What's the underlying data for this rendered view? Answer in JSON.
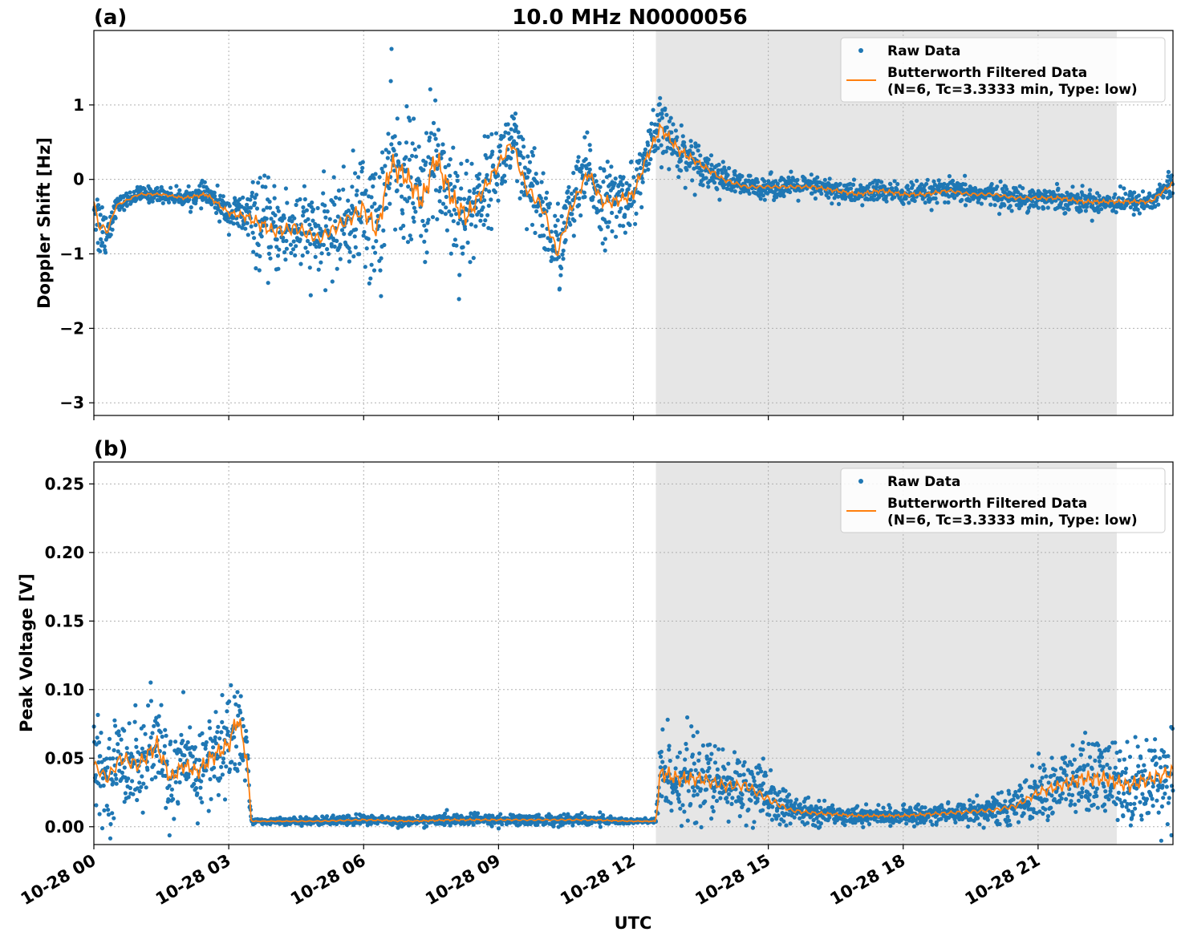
{
  "figure": {
    "title": "10.0 MHz N0000056",
    "xlabel": "UTC",
    "x_ticks": [
      "10-28 00",
      "10-28 03",
      "10-28 06",
      "10-28 09",
      "10-28 12",
      "10-28 15",
      "10-28 18",
      "10-28 21"
    ],
    "shaded_span": [
      "10-28 12:30",
      "10-28 22:45"
    ],
    "colors": {
      "raw": "#1f77b4",
      "filtered": "#ff7f0e",
      "shade": "#e6e6e6",
      "grid": "#b0b0b0"
    }
  },
  "legend": {
    "raw_label": "Raw Data",
    "filtered_label_line1": "Butterworth Filtered Data",
    "filtered_label_line2": "(N=6, Tc=3.3333 min, Type: low)"
  },
  "chart_data": [
    {
      "type": "scatter",
      "panel_label": "(a)",
      "ylabel": "Doppler Shift [Hz]",
      "ylim": [
        -3.17,
        2.0
      ],
      "y_ticks": [
        1,
        0,
        -1,
        -2,
        -3
      ],
      "y_tick_labels": [
        "1",
        "0",
        "−1",
        "−2",
        "−3"
      ],
      "x_hours_range": [
        0,
        24
      ],
      "legend_position": "top-right",
      "series": [
        {
          "name": "Raw Data",
          "style": "points",
          "x_hours": [
            0,
            0.1,
            0.3,
            0.5,
            1.0,
            1.5,
            2.0,
            2.5,
            3.0,
            3.4,
            3.7,
            4.0,
            4.5,
            5.0,
            5.5,
            6.0,
            6.3,
            6.6,
            7.0,
            7.3,
            7.6,
            8.0,
            8.3,
            8.6,
            9.0,
            9.3,
            9.6,
            10.0,
            10.3,
            10.6,
            11.0,
            11.3,
            11.6,
            12.0,
            12.3,
            12.6,
            13.0,
            13.5,
            14.0,
            14.5,
            15.0,
            15.5,
            16.0,
            16.5,
            17.0,
            17.5,
            18.0,
            18.5,
            19.0,
            19.5,
            20.0,
            20.5,
            21.0,
            21.5,
            22.0,
            22.5,
            23.0,
            23.5,
            24.0
          ],
          "y_center": [
            -0.3,
            -0.6,
            -0.7,
            -0.35,
            -0.2,
            -0.2,
            -0.25,
            -0.2,
            -0.45,
            -0.5,
            -0.6,
            -0.7,
            -0.65,
            -0.8,
            -0.6,
            -0.4,
            -0.7,
            0.2,
            0.0,
            -0.3,
            0.3,
            -0.3,
            -0.5,
            -0.2,
            0.2,
            0.5,
            -0.1,
            -0.4,
            -1.0,
            -0.4,
            0.1,
            -0.3,
            -0.3,
            -0.2,
            0.3,
            0.7,
            0.4,
            0.2,
            0.0,
            -0.1,
            -0.1,
            -0.1,
            -0.1,
            -0.15,
            -0.2,
            -0.15,
            -0.2,
            -0.2,
            -0.15,
            -0.2,
            -0.2,
            -0.25,
            -0.25,
            -0.25,
            -0.3,
            -0.3,
            -0.3,
            -0.3,
            -0.05
          ],
          "y_spread": [
            0.15,
            0.5,
            0.3,
            0.1,
            0.1,
            0.1,
            0.1,
            0.15,
            0.2,
            0.35,
            0.6,
            0.55,
            0.6,
            0.55,
            0.6,
            0.8,
            0.9,
            1.0,
            0.8,
            0.9,
            0.9,
            0.9,
            0.8,
            0.6,
            0.5,
            0.6,
            0.6,
            0.6,
            0.6,
            0.5,
            0.5,
            0.5,
            0.5,
            0.4,
            0.4,
            0.4,
            0.35,
            0.25,
            0.2,
            0.15,
            0.15,
            0.15,
            0.15,
            0.15,
            0.15,
            0.15,
            0.15,
            0.15,
            0.15,
            0.15,
            0.15,
            0.15,
            0.15,
            0.15,
            0.15,
            0.15,
            0.15,
            0.15,
            0.2
          ]
        },
        {
          "name": "Butterworth Filtered Data (N=6, Tc=3.3333 min, Type: low)",
          "style": "line",
          "x_hours": [
            0,
            0.1,
            0.3,
            0.5,
            1.0,
            1.5,
            2.0,
            2.5,
            3.0,
            3.4,
            3.7,
            4.0,
            4.5,
            5.0,
            5.5,
            6.0,
            6.3,
            6.6,
            7.0,
            7.3,
            7.6,
            8.0,
            8.3,
            8.6,
            9.0,
            9.3,
            9.6,
            10.0,
            10.3,
            10.6,
            11.0,
            11.3,
            11.6,
            12.0,
            12.3,
            12.6,
            13.0,
            13.5,
            14.0,
            14.5,
            15.0,
            15.5,
            16.0,
            16.5,
            17.0,
            17.5,
            18.0,
            18.5,
            19.0,
            19.5,
            20.0,
            20.5,
            21.0,
            21.5,
            22.0,
            22.5,
            23.0,
            23.5,
            24.0
          ],
          "y": [
            -0.3,
            -0.6,
            -0.7,
            -0.35,
            -0.2,
            -0.2,
            -0.25,
            -0.2,
            -0.45,
            -0.5,
            -0.6,
            -0.7,
            -0.65,
            -0.8,
            -0.6,
            -0.4,
            -0.7,
            0.2,
            0.0,
            -0.3,
            0.3,
            -0.3,
            -0.5,
            -0.2,
            0.2,
            0.5,
            -0.1,
            -0.4,
            -1.0,
            -0.4,
            0.1,
            -0.3,
            -0.3,
            -0.2,
            0.3,
            0.7,
            0.4,
            0.2,
            0.0,
            -0.1,
            -0.1,
            -0.1,
            -0.1,
            -0.15,
            -0.2,
            -0.15,
            -0.2,
            -0.2,
            -0.15,
            -0.2,
            -0.2,
            -0.25,
            -0.25,
            -0.25,
            -0.3,
            -0.3,
            -0.3,
            -0.3,
            -0.05
          ]
        }
      ]
    },
    {
      "type": "scatter",
      "panel_label": "(b)",
      "ylabel": "Peak Voltage [V]",
      "xlabel": "UTC",
      "ylim": [
        -0.013,
        0.266
      ],
      "y_ticks": [
        0.0,
        0.05,
        0.1,
        0.15,
        0.2,
        0.25
      ],
      "y_tick_labels": [
        "0.00",
        "0.05",
        "0.10",
        "0.15",
        "0.20",
        "0.25"
      ],
      "x_hours_range": [
        0,
        24
      ],
      "legend_position": "top-right",
      "series": [
        {
          "name": "Raw Data",
          "style": "points",
          "x_hours": [
            0,
            0.3,
            0.6,
            1.0,
            1.4,
            1.7,
            2.0,
            2.3,
            2.6,
            3.0,
            3.2,
            3.4,
            3.5,
            4.0,
            5.0,
            6.0,
            7.0,
            8.0,
            9.0,
            10.0,
            11.0,
            12.0,
            12.5,
            12.6,
            13.0,
            13.5,
            14.0,
            14.5,
            15.0,
            15.5,
            16.0,
            17.0,
            18.0,
            19.0,
            20.0,
            20.5,
            21.0,
            21.5,
            22.0,
            22.5,
            23.0,
            23.5,
            24.0
          ],
          "y_center": [
            0.045,
            0.035,
            0.05,
            0.045,
            0.06,
            0.035,
            0.045,
            0.04,
            0.05,
            0.06,
            0.08,
            0.05,
            0.004,
            0.004,
            0.004,
            0.005,
            0.004,
            0.005,
            0.005,
            0.005,
            0.005,
            0.004,
            0.004,
            0.04,
            0.035,
            0.035,
            0.03,
            0.03,
            0.02,
            0.012,
            0.01,
            0.008,
            0.008,
            0.01,
            0.012,
            0.015,
            0.025,
            0.03,
            0.035,
            0.035,
            0.03,
            0.035,
            0.04
          ],
          "y_spread": [
            0.03,
            0.03,
            0.035,
            0.035,
            0.04,
            0.03,
            0.03,
            0.03,
            0.035,
            0.035,
            0.045,
            0.03,
            0.002,
            0.002,
            0.003,
            0.004,
            0.003,
            0.004,
            0.004,
            0.004,
            0.004,
            0.002,
            0.002,
            0.035,
            0.03,
            0.03,
            0.025,
            0.025,
            0.02,
            0.01,
            0.008,
            0.006,
            0.006,
            0.008,
            0.01,
            0.012,
            0.02,
            0.025,
            0.03,
            0.03,
            0.03,
            0.03,
            0.035
          ]
        },
        {
          "name": "Butterworth Filtered Data (N=6, Tc=3.3333 min, Type: low)",
          "style": "line",
          "x_hours": [
            0,
            0.3,
            0.6,
            1.0,
            1.4,
            1.7,
            2.0,
            2.3,
            2.6,
            3.0,
            3.2,
            3.4,
            3.5,
            4.0,
            5.0,
            6.0,
            7.0,
            8.0,
            9.0,
            10.0,
            11.0,
            12.0,
            12.5,
            12.6,
            13.0,
            13.5,
            14.0,
            14.5,
            15.0,
            15.5,
            16.0,
            17.0,
            18.0,
            19.0,
            20.0,
            20.5,
            21.0,
            21.5,
            22.0,
            22.5,
            23.0,
            23.5,
            24.0
          ],
          "y": [
            0.045,
            0.035,
            0.05,
            0.045,
            0.06,
            0.035,
            0.045,
            0.04,
            0.05,
            0.06,
            0.08,
            0.05,
            0.004,
            0.004,
            0.004,
            0.005,
            0.004,
            0.005,
            0.005,
            0.005,
            0.005,
            0.004,
            0.004,
            0.04,
            0.035,
            0.035,
            0.03,
            0.03,
            0.02,
            0.012,
            0.01,
            0.008,
            0.008,
            0.01,
            0.012,
            0.015,
            0.025,
            0.03,
            0.035,
            0.035,
            0.03,
            0.035,
            0.04
          ]
        }
      ]
    }
  ]
}
